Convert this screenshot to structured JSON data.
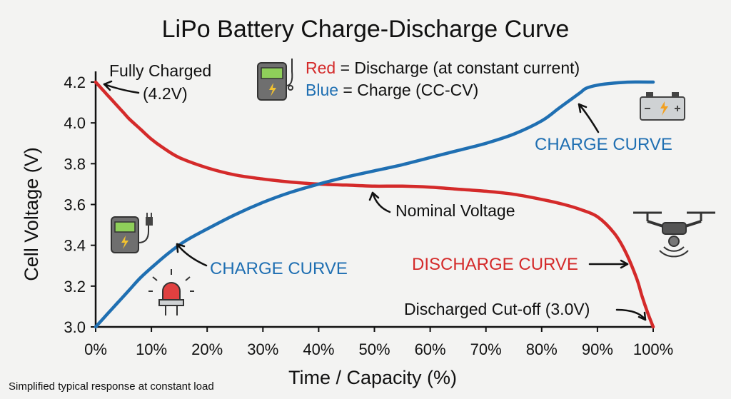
{
  "chart_data": {
    "type": "line",
    "title": "LiPo Battery Charge-Discharge Curve",
    "xlabel": "Time / Capacity (%)",
    "ylabel": "Cell Voltage (V)",
    "xlim": [
      0,
      100
    ],
    "ylim": [
      3.0,
      4.2
    ],
    "x_ticks": [
      "0%",
      "10%",
      "20%",
      "30%",
      "40%",
      "50%",
      "60%",
      "70%",
      "80%",
      "90%",
      "100%"
    ],
    "y_ticks": [
      "3.0",
      "3.2",
      "3.4",
      "3.6",
      "3.8",
      "4.0",
      "4.2"
    ],
    "grid": false,
    "colors": {
      "discharge": "#d42a2a",
      "charge": "#1f6fb2"
    },
    "series": [
      {
        "key": "discharge",
        "x": [
          0,
          1,
          2,
          3,
          4,
          5,
          6,
          8,
          10,
          12,
          15,
          20,
          25,
          30,
          35,
          40,
          45,
          50,
          55,
          60,
          65,
          70,
          75,
          80,
          84,
          87,
          90,
          93,
          95,
          97,
          98,
          99,
          100
        ],
        "y": [
          4.2,
          4.17,
          4.14,
          4.11,
          4.08,
          4.05,
          4.02,
          3.97,
          3.92,
          3.88,
          3.83,
          3.78,
          3.745,
          3.725,
          3.71,
          3.7,
          3.695,
          3.69,
          3.69,
          3.685,
          3.675,
          3.665,
          3.65,
          3.625,
          3.6,
          3.575,
          3.54,
          3.46,
          3.37,
          3.24,
          3.15,
          3.07,
          3.0
        ]
      },
      {
        "key": "charge",
        "x": [
          0,
          2,
          4,
          6,
          8,
          10,
          13,
          16,
          20,
          25,
          30,
          35,
          40,
          45,
          50,
          55,
          60,
          65,
          70,
          75,
          80,
          83,
          85,
          87,
          88,
          90,
          93,
          96,
          100
        ],
        "y": [
          3.0,
          3.06,
          3.12,
          3.18,
          3.24,
          3.29,
          3.36,
          3.42,
          3.48,
          3.55,
          3.61,
          3.66,
          3.7,
          3.735,
          3.765,
          3.795,
          3.83,
          3.865,
          3.9,
          3.945,
          4.01,
          4.07,
          4.11,
          4.15,
          4.17,
          4.185,
          4.195,
          4.2,
          4.2
        ]
      }
    ],
    "legend": {
      "red_word": "Red",
      "red_text": " = Discharge (at constant current)",
      "blue_word": "Blue",
      "blue_text": " = Charge (CC-CV)"
    },
    "annotations": {
      "fully_charged_1": "Fully Charged",
      "fully_charged_2": "(4.2V)",
      "charge_curve_upper": "CHARGE CURVE",
      "charge_curve_lower": "CHARGE CURVE",
      "nominal": "Nominal Voltage",
      "discharge_curve": "DISCHARGE CURVE",
      "cutoff": "Discharged Cut-off (3.0V)"
    },
    "footnote": "Simplified typical response at constant load"
  },
  "icons": [
    "battery-meter-icon",
    "battery-icon",
    "charger-icon",
    "warning-light-icon",
    "drone-icon"
  ]
}
